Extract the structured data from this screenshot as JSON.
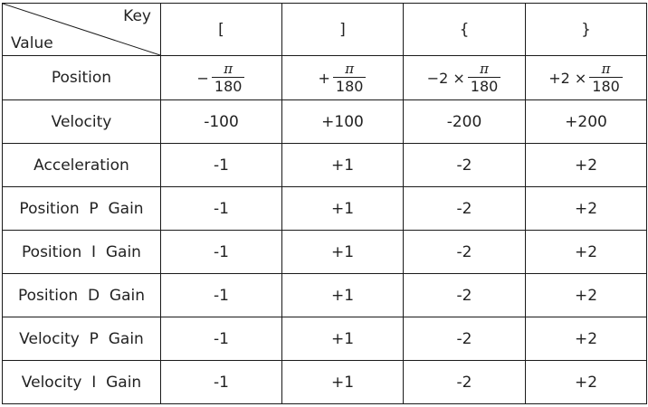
{
  "header": {
    "corner_key": "Key",
    "corner_value": "Value",
    "keys": [
      "[",
      "]",
      "{",
      "}"
    ]
  },
  "position_row": {
    "label": "Position",
    "cells": [
      {
        "prefix": "−",
        "numerator": "π",
        "denominator": "180"
      },
      {
        "prefix": "+",
        "numerator": "π",
        "denominator": "180"
      },
      {
        "prefix": "−2 ×",
        "numerator": "π",
        "denominator": "180"
      },
      {
        "prefix": "+2 ×",
        "numerator": "π",
        "denominator": "180"
      }
    ]
  },
  "rows": [
    {
      "label": "Velocity",
      "values": [
        "-100",
        "+100",
        "-200",
        "+200"
      ]
    },
    {
      "label": "Acceleration",
      "values": [
        "-1",
        "+1",
        "-2",
        "+2"
      ]
    },
    {
      "label": "Position  P  Gain",
      "values": [
        "-1",
        "+1",
        "-2",
        "+2"
      ]
    },
    {
      "label": "Position  I  Gain",
      "values": [
        "-1",
        "+1",
        "-2",
        "+2"
      ]
    },
    {
      "label": "Position  D  Gain",
      "values": [
        "-1",
        "+1",
        "-2",
        "+2"
      ]
    },
    {
      "label": "Velocity  P  Gain",
      "values": [
        "-1",
        "+1",
        "-2",
        "+2"
      ]
    },
    {
      "label": "Velocity  I  Gain",
      "values": [
        "-1",
        "+1",
        "-2",
        "+2"
      ]
    }
  ]
}
